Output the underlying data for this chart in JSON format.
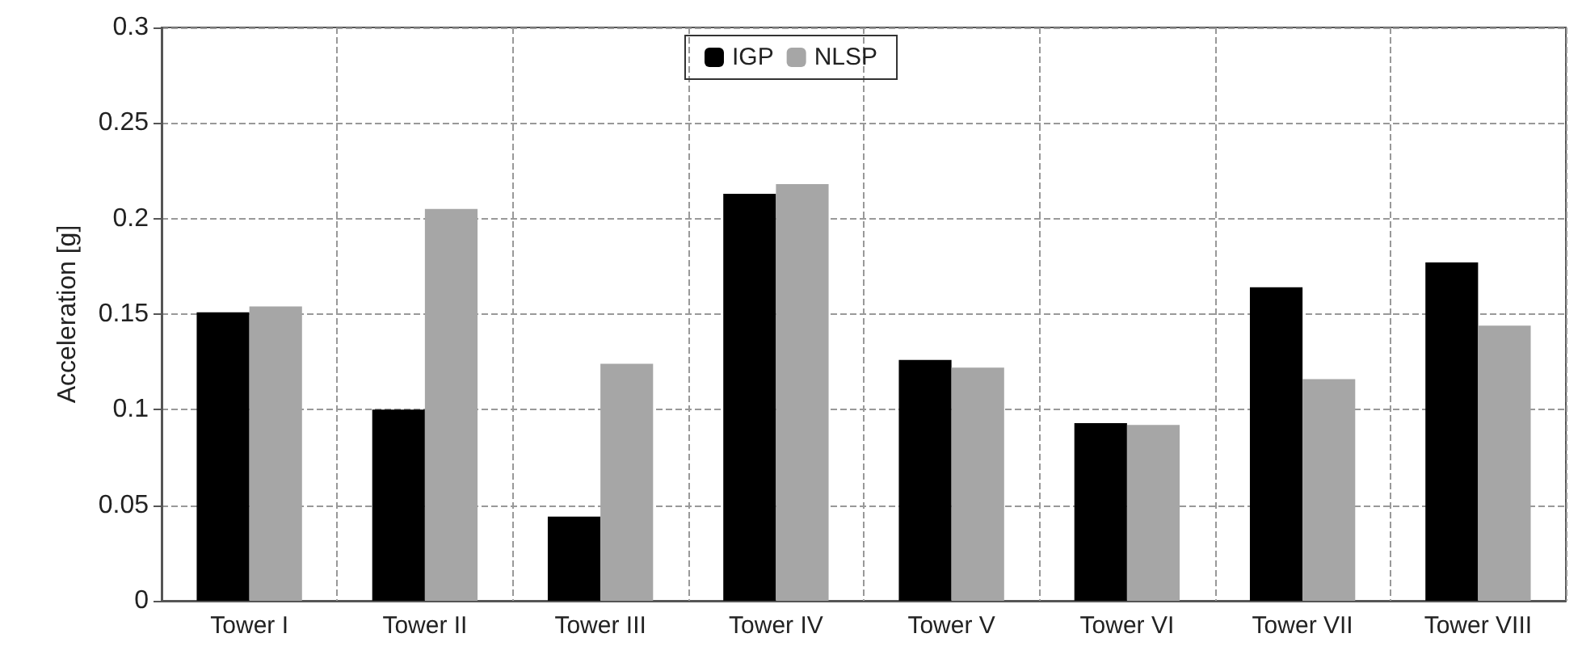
{
  "chart_data": {
    "type": "bar",
    "ylabel": "Acceleration [g]",
    "categories": [
      "Tower I",
      "Tower II",
      "Tower III",
      "Tower IV",
      "Tower V",
      "Tower VI",
      "Tower VII",
      "Tower VIII"
    ],
    "series": [
      {
        "name": "IGP",
        "color": "#000000",
        "values": [
          0.151,
          0.1,
          0.044,
          0.213,
          0.126,
          0.093,
          0.164,
          0.177
        ]
      },
      {
        "name": "NLSP",
        "color": "#a6a6a6",
        "values": [
          0.154,
          0.205,
          0.124,
          0.218,
          0.122,
          0.092,
          0.116,
          0.144
        ]
      }
    ],
    "ylim": [
      0,
      0.3
    ],
    "yticks": [
      0,
      0.05,
      0.1,
      0.15,
      0.2,
      0.25,
      0.3
    ],
    "grid": true,
    "legend": "top"
  }
}
